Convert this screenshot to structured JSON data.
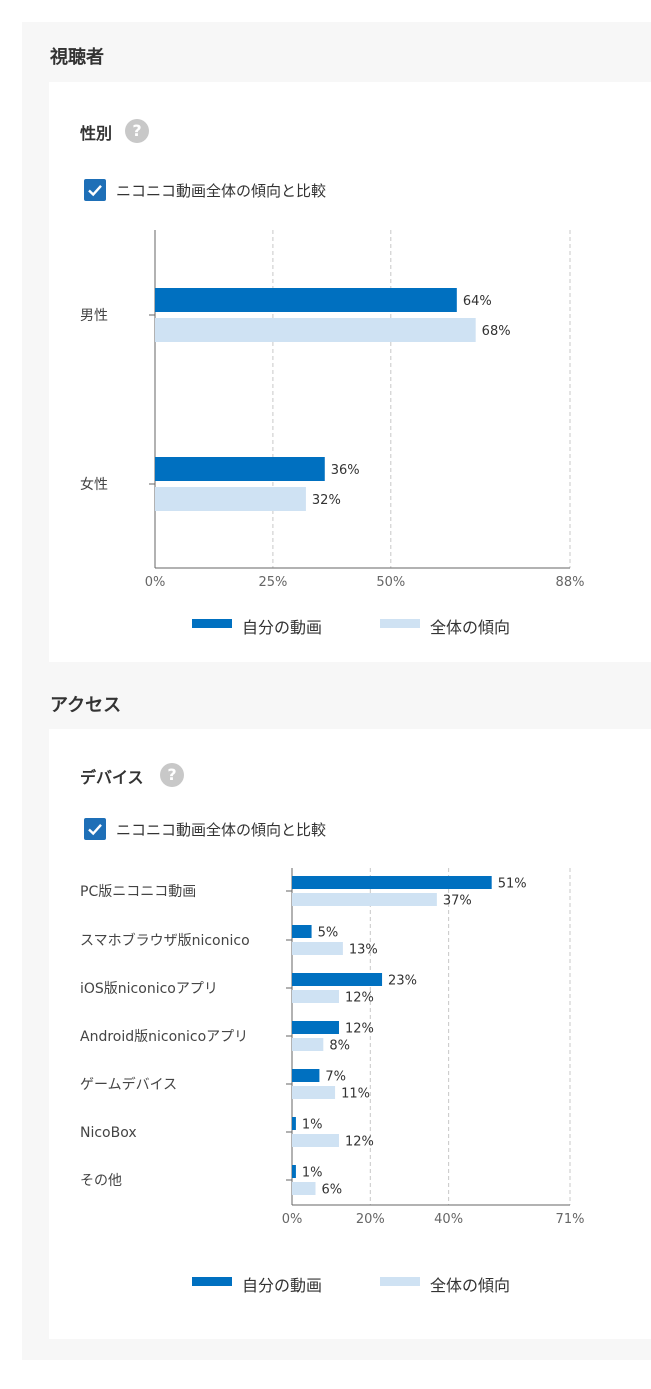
{
  "colors": {
    "own": "#0070c0",
    "overall": "#cfe2f3",
    "axis": "#666666",
    "grid": "#c8c8c8",
    "checkbox": "#1e6fb7"
  },
  "viewers": {
    "title": "視聴者",
    "gender": {
      "title": "性別",
      "help_icon": "help-icon",
      "compare_label": "ニコニコ動画全体の傾向と比較",
      "legend": {
        "own": "自分の動画",
        "overall": "全体の傾向"
      }
    }
  },
  "access": {
    "title": "アクセス",
    "device": {
      "title": "デバイス",
      "help_icon": "help-icon",
      "compare_label": "ニコニコ動画全体の傾向と比較",
      "legend": {
        "own": "自分の動画",
        "overall": "全体の傾向"
      }
    }
  },
  "chart_data": [
    {
      "type": "bar",
      "orientation": "horizontal",
      "categories": [
        "男性",
        "女性"
      ],
      "series": [
        {
          "name": "自分の動画",
          "values": [
            64,
            36
          ],
          "labels": [
            "64%",
            "36%"
          ]
        },
        {
          "name": "全体の傾向",
          "values": [
            68,
            32
          ],
          "labels": [
            "68%",
            "32%"
          ]
        }
      ],
      "xticks": [
        0,
        25,
        50,
        88
      ],
      "xtick_labels": [
        "0%",
        "25%",
        "50%",
        "88%"
      ],
      "xlim": [
        0,
        88
      ],
      "grid": true,
      "legend": "bottom"
    },
    {
      "type": "bar",
      "orientation": "horizontal",
      "categories": [
        "PC版ニコニコ動画",
        "スマホブラウザ版niconico",
        "iOS版niconicoアプリ",
        "Android版niconicoアプリ",
        "ゲームデバイス",
        "NicoBox",
        "その他"
      ],
      "series": [
        {
          "name": "自分の動画",
          "values": [
            51,
            5,
            23,
            12,
            7,
            1,
            1
          ],
          "labels": [
            "51%",
            "5%",
            "23%",
            "12%",
            "7%",
            "1%",
            "1%"
          ]
        },
        {
          "name": "全体の傾向",
          "values": [
            37,
            13,
            12,
            8,
            11,
            12,
            6
          ],
          "labels": [
            "37%",
            "13%",
            "12%",
            "8%",
            "11%",
            "12%",
            "6%"
          ]
        }
      ],
      "xticks": [
        0,
        20,
        40,
        71
      ],
      "xtick_labels": [
        "0%",
        "20%",
        "40%",
        "71%"
      ],
      "xlim": [
        0,
        71
      ],
      "grid": true,
      "legend": "bottom"
    }
  ]
}
